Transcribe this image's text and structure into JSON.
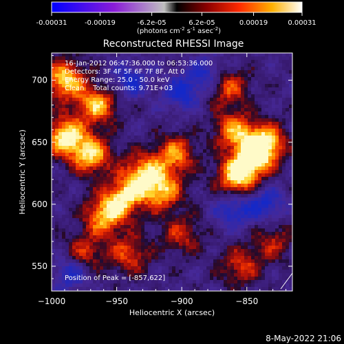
{
  "colorbar": {
    "ticks": [
      "-0.00031",
      "-0.00019",
      "-6.2e-05",
      "6.2e-05",
      "0.00019",
      "0.00031"
    ],
    "tick_values": [
      -0.00031,
      -0.00019,
      -6.2e-05,
      6.2e-05,
      0.00019,
      0.00031
    ],
    "range": [
      -0.00031,
      0.00031
    ],
    "units_prefix": "(photons cm",
    "units_exp1": "-2",
    "units_mid": " s",
    "units_exp2": "-1",
    "units_mid2": " asec",
    "units_exp3": "-2",
    "units_suffix": ")"
  },
  "chart_data": {
    "type": "heatmap",
    "title": "Reconstructed RHESSI Image",
    "xlabel": "Heliocentric X (arcsec)",
    "ylabel": "Heliocentric Y (arcsec)",
    "xlim": [
      -1000,
      -815
    ],
    "ylim": [
      530,
      722
    ],
    "xticks": [
      -1000,
      -950,
      -900,
      -850
    ],
    "xtick_labels": [
      "−1000",
      "−950",
      "−900",
      "−850"
    ],
    "yticks": [
      550,
      600,
      650,
      700
    ],
    "ytick_labels": [
      "550",
      "600",
      "650",
      "700"
    ],
    "peak": [
      -857,
      622
    ],
    "annotations": [
      "16-Jan-2012 06:47:36.000 to 06:53:36.000",
      "Detectors: 3F 4F 5F 6F 7F 8F, Att 0",
      "Energy Range: 25.0 - 50.0 keV",
      "Clean    Total counts: 9.71E+03",
      "Position of Peak = [-857,622]"
    ],
    "bright_regions": [
      {
        "x": -990,
        "y": 700,
        "level": 0.95
      },
      {
        "x": -965,
        "y": 680,
        "level": 0.85
      },
      {
        "x": -990,
        "y": 655,
        "level": 1.0
      },
      {
        "x": -970,
        "y": 640,
        "level": 0.9
      },
      {
        "x": -930,
        "y": 625,
        "level": 0.85
      },
      {
        "x": -915,
        "y": 610,
        "level": 0.8
      },
      {
        "x": -905,
        "y": 640,
        "level": 0.75
      },
      {
        "x": -860,
        "y": 660,
        "level": 0.7
      },
      {
        "x": -857,
        "y": 622,
        "level": 1.0
      },
      {
        "x": -845,
        "y": 640,
        "level": 0.9
      },
      {
        "x": -835,
        "y": 650,
        "level": 0.8
      },
      {
        "x": -865,
        "y": 695,
        "level": 0.65
      },
      {
        "x": -960,
        "y": 590,
        "level": 0.8
      },
      {
        "x": -945,
        "y": 605,
        "level": 0.85
      },
      {
        "x": -975,
        "y": 560,
        "level": 0.55
      },
      {
        "x": -940,
        "y": 560,
        "level": 0.6
      },
      {
        "x": -855,
        "y": 550,
        "level": 0.55
      },
      {
        "x": -830,
        "y": 570,
        "level": 0.45
      },
      {
        "x": -900,
        "y": 575,
        "level": 0.5
      }
    ],
    "dim_regions": [
      {
        "x": -985,
        "y": 545
      },
      {
        "x": -940,
        "y": 700
      },
      {
        "x": -900,
        "y": 690
      },
      {
        "x": -860,
        "y": 595
      },
      {
        "x": -835,
        "y": 600
      },
      {
        "x": -880,
        "y": 705
      }
    ]
  },
  "footer": {
    "date": "8-May-2022 21:06"
  }
}
